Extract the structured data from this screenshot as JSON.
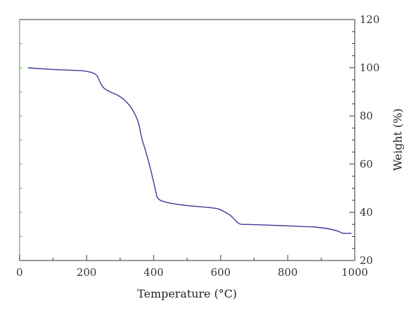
{
  "chart_data": {
    "type": "line",
    "title": "",
    "xlabel": "Temperature (°C)",
    "ylabel": "Weight (%)",
    "xlim": [
      0,
      1000
    ],
    "ylim": [
      20,
      120
    ],
    "x_ticks": [
      0,
      200,
      400,
      600,
      800,
      1000
    ],
    "y_ticks": [
      20,
      40,
      60,
      80,
      100,
      120
    ],
    "y_axis_side": "right",
    "grid": false,
    "legend": "none",
    "colors": {
      "line": "#3a3a9a",
      "axis": "#333333",
      "left_axis": "#6aaa5a"
    },
    "series": [
      {
        "x": [
          25,
          50,
          100,
          150,
          180,
          200,
          220,
          232,
          240,
          248,
          255,
          270,
          290,
          310,
          330,
          345,
          355,
          365,
          375,
          385,
          395,
          405,
          410,
          415,
          420,
          430,
          450,
          500,
          550,
          590,
          610,
          630,
          645,
          655,
          665,
          680,
          720,
          780,
          850,
          880,
          920,
          950,
          965,
          990
        ],
        "y": [
          100,
          99.7,
          99.3,
          99.0,
          98.8,
          98.5,
          97.8,
          96.5,
          94.0,
          92.2,
          91.2,
          90.0,
          88.8,
          87.0,
          84.0,
          80.5,
          77.0,
          70.5,
          66.0,
          61.0,
          55.5,
          49.5,
          46.5,
          45.5,
          45.0,
          44.5,
          43.8,
          42.8,
          42.2,
          41.5,
          40.3,
          38.6,
          36.5,
          35.3,
          35.0,
          35.0,
          34.8,
          34.5,
          34.1,
          33.9,
          33.2,
          32.2,
          31.3,
          31.3
        ]
      }
    ]
  }
}
